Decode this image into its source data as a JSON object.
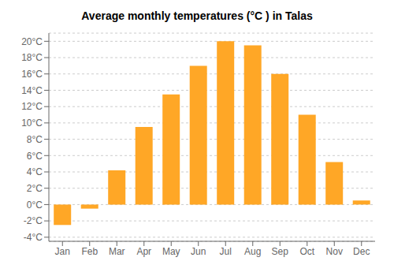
{
  "chart_data": {
    "type": "bar",
    "title": "Average monthly temperatures (°C ) in Talas",
    "categories": [
      "Jan",
      "Feb",
      "Mar",
      "Apr",
      "May",
      "Jun",
      "Jul",
      "Aug",
      "Sep",
      "Oct",
      "Nov",
      "Dec"
    ],
    "values": [
      -2.5,
      -0.5,
      4.2,
      9.5,
      13.5,
      17.0,
      20.0,
      19.5,
      16.0,
      11.0,
      5.2,
      0.5
    ],
    "color": "#FFA726",
    "ylim": [
      -4.5,
      21
    ],
    "yticks": [
      {
        "value": -4,
        "label": "-4°C"
      },
      {
        "value": -2,
        "label": "-2°C"
      },
      {
        "value": 0,
        "label": "0°C"
      },
      {
        "value": 2,
        "label": "2°C"
      },
      {
        "value": 4,
        "label": "4°C"
      },
      {
        "value": 6,
        "label": "6°C"
      },
      {
        "value": 8,
        "label": "8°C"
      },
      {
        "value": 10,
        "label": "10°C"
      },
      {
        "value": 12,
        "label": "12°C"
      },
      {
        "value": 14,
        "label": "14°C"
      },
      {
        "value": 16,
        "label": "16°C"
      },
      {
        "value": 18,
        "label": "18°C"
      },
      {
        "value": 20,
        "label": "20°C"
      }
    ],
    "grid": true
  }
}
